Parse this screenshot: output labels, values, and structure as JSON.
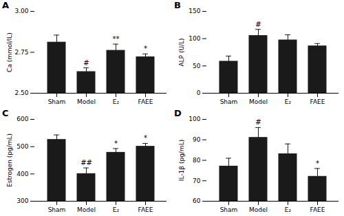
{
  "chart_data": [
    {
      "type": "bar",
      "title": "A",
      "ylabel": "Ca (mmol/lL)",
      "categories": [
        "Sham",
        "Model",
        "E₂",
        "FAEE"
      ],
      "values": [
        2.81,
        2.63,
        2.76,
        2.72
      ],
      "errors": [
        0.045,
        0.025,
        0.04,
        0.02
      ],
      "annotations": [
        null,
        "#",
        "**",
        "*"
      ],
      "ylim": [
        2.5,
        3.0
      ],
      "yticks": [
        {
          "value": 2.5,
          "label": "2.50"
        },
        {
          "value": 2.75,
          "label": "2.75"
        },
        {
          "value": 3.0,
          "label": "3.00"
        }
      ],
      "color": "#1a1a1a"
    },
    {
      "type": "bar",
      "title": "B",
      "ylabel": "ALP (U/L)",
      "categories": [
        "Sham",
        "Model",
        "E₂",
        "FAEE"
      ],
      "values": [
        58,
        105,
        97,
        86
      ],
      "errors": [
        10,
        12,
        10,
        5
      ],
      "annotations": [
        null,
        "#",
        null,
        null
      ],
      "ylim": [
        0,
        150
      ],
      "yticks": [
        0,
        50,
        100,
        150
      ],
      "color": "#1a1a1a"
    },
    {
      "type": "bar",
      "title": "C",
      "ylabel": "Estrogen (pg/mL)",
      "categories": [
        "Sham",
        "Model",
        "E₂",
        "FAEE"
      ],
      "values": [
        525,
        400,
        478,
        500
      ],
      "errors": [
        18,
        22,
        15,
        12
      ],
      "annotations": [
        null,
        "##",
        "*",
        "*"
      ],
      "ylim": [
        300,
        600
      ],
      "yticks": [
        300,
        400,
        500,
        600
      ],
      "color": "#1a1a1a"
    },
    {
      "type": "bar",
      "title": "D",
      "ylabel": "IL-1β (pg/mL)",
      "categories": [
        "Sham",
        "Model",
        "E₂",
        "FAEE"
      ],
      "values": [
        77,
        91,
        83,
        72
      ],
      "errors": [
        4,
        5,
        5,
        4
      ],
      "annotations": [
        null,
        "#",
        null,
        "*"
      ],
      "ylim": [
        60,
        100
      ],
      "yticks": [
        60,
        70,
        80,
        90,
        100
      ],
      "color": "#1a1a1a"
    }
  ]
}
